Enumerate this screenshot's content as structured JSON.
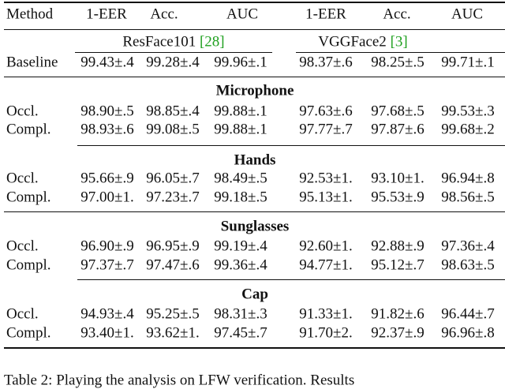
{
  "table": {
    "header": [
      "Method",
      "1-EER",
      "Acc.",
      "AUC",
      "1-EER",
      "Acc.",
      "AUC"
    ],
    "datasets": [
      {
        "name": "ResFace101",
        "cite": "[28]"
      },
      {
        "name": "VGGFace2",
        "cite": "[3]"
      }
    ],
    "baseline": [
      "Baseline",
      "99.43±.4",
      "99.28±.4",
      "99.96±.1",
      "98.37±.6",
      "98.25±.5",
      "99.71±.1"
    ],
    "sections": [
      {
        "title": "Microphone",
        "rows": [
          [
            "Occl.",
            "98.90±.5",
            "98.85±.4",
            "99.88±.1",
            "97.63±.6",
            "97.68±.5",
            "99.53±.3"
          ],
          [
            "Compl.",
            "98.93±.6",
            "99.08±.5",
            "99.88±.1",
            "97.77±.7",
            "97.87±.6",
            "99.68±.2"
          ]
        ]
      },
      {
        "title": "Hands",
        "rows": [
          [
            "Occl.",
            "95.66±.9",
            "96.05±.7",
            "98.49±.5",
            "92.53±1.",
            "93.10±1.",
            "96.94±.8"
          ],
          [
            "Compl.",
            "97.00±1.",
            "97.23±.7",
            "99.18±.5",
            "95.13±1.",
            "95.53±.9",
            "98.56±.5"
          ]
        ]
      },
      {
        "title": "Sunglasses",
        "rows": [
          [
            "Occl.",
            "96.90±.9",
            "96.95±.9",
            "99.19±.4",
            "92.60±1.",
            "92.88±.9",
            "97.36±.4"
          ],
          [
            "Compl.",
            "97.37±.7",
            "97.47±.6",
            "99.36±.4",
            "94.77±1.",
            "95.12±.7",
            "98.63±.5"
          ]
        ]
      },
      {
        "title": "Cap",
        "rows": [
          [
            "Occl.",
            "94.93±.4",
            "95.25±.5",
            "98.31±.3",
            "91.33±1.",
            "91.82±.6",
            "96.44±.7"
          ],
          [
            "Compl.",
            "93.40±1.",
            "93.62±1.",
            "97.45±.7",
            "91.70±2.",
            "92.37±.9",
            "96.96±.8"
          ]
        ]
      }
    ]
  },
  "caption": "Table 2: Playing the analysis on LFW verification. Results"
}
